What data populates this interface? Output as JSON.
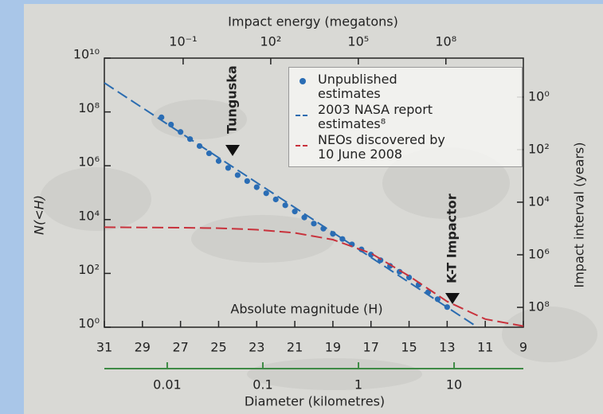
{
  "chart_data": {
    "type": "line",
    "x_label": "Absolute magnitude (H)",
    "y_label": "N(<H)",
    "xlim": [
      31,
      9
    ],
    "xticks": [
      31,
      29,
      27,
      25,
      23,
      21,
      19,
      17,
      15,
      13,
      11,
      9
    ],
    "ylim": [
      1,
      10000000000
    ],
    "yticks": [
      {
        "value": 1,
        "label": "10⁰"
      },
      {
        "value": 100,
        "label": "10²"
      },
      {
        "value": 10000,
        "label": "10⁴"
      },
      {
        "value": 1000000,
        "label": "10⁶"
      },
      {
        "value": 100000000,
        "label": "10⁸"
      },
      {
        "value": 10000000000,
        "label": "10¹⁰"
      }
    ],
    "y_scale": "log",
    "y2_label": "Impact interval (years)",
    "y2lim": [
      570000000,
      0.033
    ],
    "y2ticks": [
      {
        "value": 1,
        "label": "10⁰"
      },
      {
        "value": 100,
        "label": "10²"
      },
      {
        "value": 10000,
        "label": "10⁴"
      },
      {
        "value": 1000000,
        "label": "10⁶"
      },
      {
        "value": 100000000,
        "label": "10⁸"
      }
    ],
    "top_axis": {
      "label": "Impact energy (megatons)",
      "lim": [
        0.0002,
        45000000000
      ],
      "scale": "log",
      "ticks": [
        {
          "value": 0.1,
          "label": "10⁻¹"
        },
        {
          "value": 100,
          "label": "10²"
        },
        {
          "value": 100000,
          "label": "10⁵"
        },
        {
          "value": 100000000,
          "label": "10⁸"
        }
      ]
    },
    "bottom_axis": {
      "label": "Diameter (kilometres)",
      "lim": [
        0.0022,
        53
      ],
      "scale": "log",
      "ticks": [
        0.01,
        0.1,
        1,
        10
      ]
    },
    "annotations": [
      "Tunguska",
      "K-T Impactor"
    ],
    "legend": "upper right",
    "series": [
      {
        "name": "Unpublished estimates",
        "type": "scatter",
        "color": "#2a6db5",
        "x": [
          28,
          27.5,
          27,
          26.5,
          26,
          25.5,
          25,
          24.5,
          24,
          23.5,
          23,
          22.5,
          22,
          21.5,
          21,
          20.5,
          20,
          19.5,
          19,
          18.5,
          18,
          17.5,
          17,
          16.5,
          16,
          15.5,
          15,
          14.5,
          14,
          13.5,
          13
        ],
        "values": [
          63000000,
          34000000,
          18000000,
          9800000,
          5400000,
          2900000,
          1500000,
          830000,
          450000,
          270000,
          160000,
          95000,
          56000,
          34000,
          20000,
          12000,
          7100,
          4600,
          2950,
          1900,
          1200,
          780,
          500,
          310,
          190,
          115,
          71,
          38,
          20,
          11,
          5.6
        ]
      },
      {
        "name": "2003 NASA report estimates⁸",
        "type": "line",
        "color": "#2b6cb0",
        "x": [
          31,
          11.4
        ],
        "values": [
          1200000000,
          1
        ]
      },
      {
        "name": "NEOs discovered by 10 June 2008",
        "type": "line",
        "color": "#c8323c",
        "x": [
          31,
          29,
          27,
          25,
          23,
          21,
          19,
          17,
          15,
          13,
          11,
          9
        ],
        "values": [
          5200,
          5100,
          5000,
          4800,
          4200,
          3200,
          1800,
          560,
          80,
          9,
          2,
          1.1
        ]
      }
    ]
  }
}
